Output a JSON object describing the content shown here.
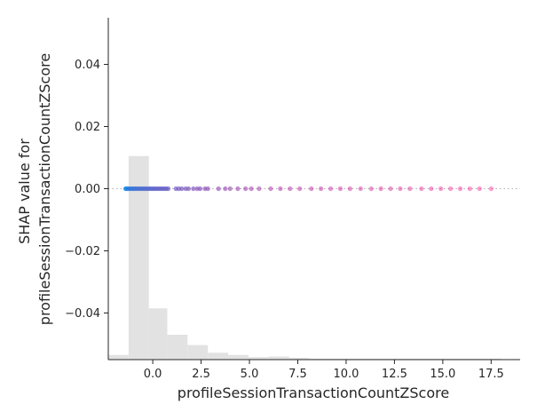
{
  "chart_data": {
    "type": "scatter",
    "title": "",
    "xlabel": "profileSessionTransactionCountZScore",
    "ylabel_lines": [
      "SHAP value for",
      "profileSessionTransactionCountZScore"
    ],
    "xlim": [
      -2.3,
      19.0
    ],
    "ylim": [
      -0.055,
      0.055
    ],
    "x_ticks": [
      0.0,
      2.5,
      5.0,
      7.5,
      10.0,
      12.5,
      15.0,
      17.5
    ],
    "x_tick_labels": [
      "0.0",
      "2.5",
      "5.0",
      "7.5",
      "10.0",
      "12.5",
      "15.0",
      "17.5"
    ],
    "y_ticks": [
      -0.04,
      -0.02,
      0.0,
      0.02,
      0.04
    ],
    "y_tick_labels": [
      "−0.04",
      "−0.02",
      "0.00",
      "0.02",
      "0.04"
    ],
    "zero_line": {
      "y": 0.0,
      "style": "dotted",
      "color": "#b0b0b0"
    },
    "colors": {
      "low": "#0a87e8",
      "high": "#ff0d87",
      "histogram": "#e2e2e2",
      "axis": "#262626"
    },
    "histogram": {
      "bins": [
        {
          "x0": -2.3,
          "x1": -1.25,
          "height": 0.0015
        },
        {
          "x0": -1.25,
          "x1": -0.2,
          "height": 0.0655
        },
        {
          "x0": -0.2,
          "x1": 0.75,
          "height": 0.0165
        },
        {
          "x0": 0.75,
          "x1": 1.8,
          "height": 0.008
        },
        {
          "x0": 1.8,
          "x1": 2.85,
          "height": 0.0047
        },
        {
          "x0": 2.85,
          "x1": 3.9,
          "height": 0.0022
        },
        {
          "x0": 3.9,
          "x1": 4.95,
          "height": 0.0015
        },
        {
          "x0": 4.95,
          "x1": 6.0,
          "height": 0.0008
        },
        {
          "x0": 6.0,
          "x1": 7.05,
          "height": 0.001
        },
        {
          "x0": 7.05,
          "x1": 8.1,
          "height": 0.0006
        },
        {
          "x0": 8.1,
          "x1": 18.0,
          "height": 0.0003
        }
      ]
    },
    "series": [
      {
        "points": [
          {
            "x": -1.4,
            "y": 0.0
          },
          {
            "x": -1.3,
            "y": 0.0
          },
          {
            "x": -1.2,
            "y": 0.0
          },
          {
            "x": -1.1,
            "y": 0.0
          },
          {
            "x": -1.0,
            "y": 0.0
          },
          {
            "x": -0.9,
            "y": 0.0
          },
          {
            "x": -0.8,
            "y": 0.0
          },
          {
            "x": -0.7,
            "y": 0.0
          },
          {
            "x": -0.6,
            "y": 0.0
          },
          {
            "x": -0.5,
            "y": 0.0
          },
          {
            "x": -0.4,
            "y": 0.0
          },
          {
            "x": -0.3,
            "y": 0.0
          },
          {
            "x": -0.2,
            "y": 0.0
          },
          {
            "x": -0.1,
            "y": 0.0
          },
          {
            "x": 0.0,
            "y": 0.0
          },
          {
            "x": 0.1,
            "y": 0.0
          },
          {
            "x": 0.2,
            "y": 0.0
          },
          {
            "x": 0.3,
            "y": 0.0
          },
          {
            "x": 0.4,
            "y": 0.0
          },
          {
            "x": 0.5,
            "y": 0.0
          },
          {
            "x": 0.6,
            "y": 0.0
          },
          {
            "x": 0.7,
            "y": 0.0
          },
          {
            "x": 0.8,
            "y": 0.0
          },
          {
            "x": 1.2,
            "y": 0.0
          },
          {
            "x": 1.35,
            "y": 0.0
          },
          {
            "x": 1.5,
            "y": 0.0
          },
          {
            "x": 1.7,
            "y": 0.0
          },
          {
            "x": 1.85,
            "y": 0.0
          },
          {
            "x": 2.1,
            "y": 0.0
          },
          {
            "x": 2.3,
            "y": 0.0
          },
          {
            "x": 2.45,
            "y": 0.0
          },
          {
            "x": 2.7,
            "y": 0.0
          },
          {
            "x": 2.85,
            "y": 0.0
          },
          {
            "x": 3.4,
            "y": 0.0
          },
          {
            "x": 3.75,
            "y": 0.0
          },
          {
            "x": 4.0,
            "y": 0.0
          },
          {
            "x": 4.4,
            "y": 0.0
          },
          {
            "x": 4.8,
            "y": 0.0
          },
          {
            "x": 5.1,
            "y": 0.0
          },
          {
            "x": 5.5,
            "y": 0.0
          },
          {
            "x": 6.1,
            "y": 0.0
          },
          {
            "x": 6.6,
            "y": 0.0
          },
          {
            "x": 7.1,
            "y": 0.0
          },
          {
            "x": 7.6,
            "y": 0.0
          },
          {
            "x": 8.2,
            "y": 0.0
          },
          {
            "x": 8.7,
            "y": 0.0
          },
          {
            "x": 9.2,
            "y": 0.0
          },
          {
            "x": 9.7,
            "y": 0.0
          },
          {
            "x": 10.2,
            "y": 0.0
          },
          {
            "x": 10.75,
            "y": 0.0
          },
          {
            "x": 11.3,
            "y": 0.0
          },
          {
            "x": 11.8,
            "y": 0.0
          },
          {
            "x": 12.3,
            "y": 0.0
          },
          {
            "x": 12.8,
            "y": 0.0
          },
          {
            "x": 13.3,
            "y": 0.0
          },
          {
            "x": 13.9,
            "y": 0.0
          },
          {
            "x": 14.4,
            "y": 0.0
          },
          {
            "x": 14.9,
            "y": 0.0
          },
          {
            "x": 15.4,
            "y": 0.0
          },
          {
            "x": 15.9,
            "y": 0.0
          },
          {
            "x": 16.4,
            "y": 0.0
          },
          {
            "x": 16.9,
            "y": 0.0
          },
          {
            "x": 17.5,
            "y": 0.0
          }
        ]
      }
    ]
  }
}
